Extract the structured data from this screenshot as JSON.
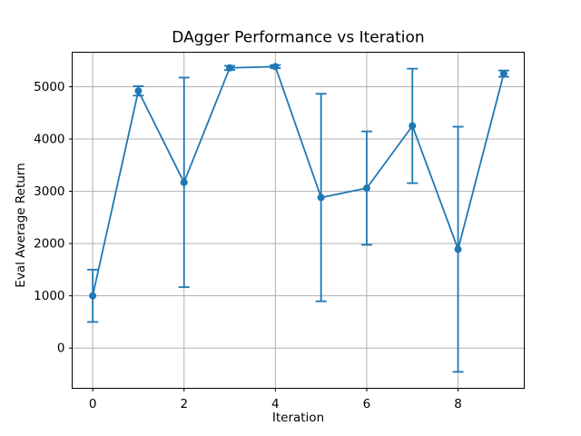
{
  "window": {
    "background_color": "#ffffff"
  },
  "chart_data": {
    "type": "line",
    "title": "DAgger Performance vs Iteration",
    "xlabel": "Iteration",
    "ylabel": "Eval Average Return",
    "x": [
      0,
      1,
      2,
      3,
      4,
      5,
      6,
      7,
      8,
      9
    ],
    "series": [
      {
        "name": "eval-average-return",
        "values": [
          1000,
          4920,
          3170,
          5360,
          5385,
          2880,
          3060,
          4250,
          1890,
          5250
        ],
        "error_bars": [
          500,
          90,
          2005,
          40,
          30,
          1985,
          1085,
          1095,
          2345,
          60
        ],
        "color": "#1f77b4",
        "marker": "o",
        "marker_radius": 4,
        "line_width": 1.8,
        "cap_half_width": 6
      }
    ],
    "xlim": [
      -0.45,
      9.45
    ],
    "ylim": [
      -770,
      5660
    ],
    "xticks": [
      0,
      2,
      4,
      6,
      8
    ],
    "yticks": [
      0,
      1000,
      2000,
      3000,
      4000,
      5000
    ],
    "grid": true,
    "grid_color": "#b0b0b0",
    "spine_color": "#000000",
    "tick_color": "#000000",
    "legend": false
  }
}
